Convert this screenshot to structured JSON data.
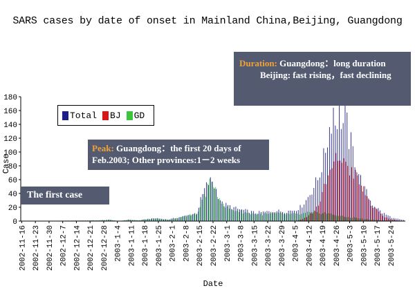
{
  "chart_data": {
    "type": "bar",
    "title": "SARS cases by date of onset in Mainland China,Beijing, Guangdong",
    "xlabel": "Date",
    "ylabel": "Case",
    "ylim": [
      0,
      180
    ],
    "yticks": [
      0,
      20,
      40,
      60,
      80,
      100,
      120,
      140,
      160,
      180
    ],
    "x_tick_labels": [
      "2002-11-16",
      "2002-11-23",
      "2002-11-30",
      "2002-12-7",
      "2002-12-14",
      "2002-12-21",
      "2002-12-28",
      "2003-1-4",
      "2003-1-11",
      "2003-1-18",
      "2003-1-25",
      "2003-2-1",
      "2003-2-8",
      "2003-2-15",
      "2003-2-22",
      "2003-3-1",
      "2003-3-8",
      "2003-3-15",
      "2003-3-22",
      "2003-3-29",
      "2003-4-5",
      "2003-4-12",
      "2003-4-19",
      "2003-4-26",
      "2003-5-3",
      "2003-5-10",
      "2003-5-17",
      "2003-5-24"
    ],
    "start_date": "2002-11-16",
    "end_date": "2003-5-31",
    "series": [
      {
        "name": "Total",
        "color": "#1c1f8a",
        "keypoints": [
          [
            0,
            0
          ],
          [
            40,
            1
          ],
          [
            45,
            2
          ],
          [
            50,
            0
          ],
          [
            55,
            2
          ],
          [
            60,
            1
          ],
          [
            65,
            3
          ],
          [
            70,
            4
          ],
          [
            75,
            2
          ],
          [
            80,
            5
          ],
          [
            85,
            8
          ],
          [
            90,
            12
          ],
          [
            92,
            30
          ],
          [
            94,
            45
          ],
          [
            96,
            55
          ],
          [
            98,
            58
          ],
          [
            100,
            45
          ],
          [
            103,
            25
          ],
          [
            106,
            22
          ],
          [
            110,
            18
          ],
          [
            115,
            15
          ],
          [
            120,
            12
          ],
          [
            125,
            13
          ],
          [
            130,
            15
          ],
          [
            135,
            14
          ],
          [
            140,
            16
          ],
          [
            143,
            20
          ],
          [
            146,
            30
          ],
          [
            149,
            45
          ],
          [
            152,
            60
          ],
          [
            155,
            90
          ],
          [
            157,
            120
          ],
          [
            159,
            150
          ],
          [
            160,
            163
          ],
          [
            161,
            145
          ],
          [
            163,
            160
          ],
          [
            165,
            140
          ],
          [
            166,
            152
          ],
          [
            168,
            120
          ],
          [
            170,
            100
          ],
          [
            172,
            80
          ],
          [
            175,
            50
          ],
          [
            178,
            35
          ],
          [
            180,
            25
          ],
          [
            182,
            20
          ],
          [
            185,
            12
          ],
          [
            188,
            8
          ],
          [
            191,
            4
          ],
          [
            195,
            2
          ],
          [
            197,
            1
          ]
        ]
      },
      {
        "name": "BJ",
        "color": "#d81818",
        "keypoints": [
          [
            0,
            0
          ],
          [
            140,
            0
          ],
          [
            144,
            3
          ],
          [
            147,
            8
          ],
          [
            150,
            15
          ],
          [
            153,
            30
          ],
          [
            156,
            55
          ],
          [
            158,
            70
          ],
          [
            160,
            80
          ],
          [
            162,
            92
          ],
          [
            163,
            95
          ],
          [
            165,
            80
          ],
          [
            166,
            88
          ],
          [
            168,
            75
          ],
          [
            170,
            70
          ],
          [
            172,
            60
          ],
          [
            175,
            45
          ],
          [
            178,
            30
          ],
          [
            180,
            20
          ],
          [
            183,
            12
          ],
          [
            186,
            6
          ],
          [
            189,
            3
          ],
          [
            193,
            1
          ],
          [
            197,
            0
          ]
        ]
      },
      {
        "name": "GD",
        "color": "#3cc43c",
        "keypoints": [
          [
            0,
            0
          ],
          [
            40,
            1
          ],
          [
            45,
            2
          ],
          [
            50,
            0
          ],
          [
            55,
            2
          ],
          [
            60,
            1
          ],
          [
            65,
            3
          ],
          [
            70,
            4
          ],
          [
            75,
            2
          ],
          [
            80,
            5
          ],
          [
            85,
            8
          ],
          [
            90,
            12
          ],
          [
            92,
            30
          ],
          [
            94,
            42
          ],
          [
            96,
            52
          ],
          [
            98,
            57
          ],
          [
            100,
            42
          ],
          [
            103,
            22
          ],
          [
            106,
            18
          ],
          [
            110,
            15
          ],
          [
            115,
            12
          ],
          [
            120,
            10
          ],
          [
            125,
            10
          ],
          [
            130,
            11
          ],
          [
            135,
            10
          ],
          [
            140,
            10
          ],
          [
            143,
            10
          ],
          [
            146,
            12
          ],
          [
            149,
            12
          ],
          [
            152,
            12
          ],
          [
            155,
            12
          ],
          [
            158,
            10
          ],
          [
            162,
            8
          ],
          [
            165,
            6
          ],
          [
            170,
            5
          ],
          [
            175,
            3
          ],
          [
            180,
            2
          ],
          [
            185,
            1
          ],
          [
            190,
            1
          ],
          [
            197,
            0
          ]
        ]
      }
    ],
    "annotations": {
      "duration_label": "Duration:",
      "duration_text": "Guangdong：long duration",
      "duration_line2": "Beijing: fast rising，fast declining",
      "peak_label": "Peak:",
      "peak_text": "Guangdong：the first 20 days of Feb.2003; Other provinces:1－2 weeks",
      "first_case": "The first case"
    }
  }
}
